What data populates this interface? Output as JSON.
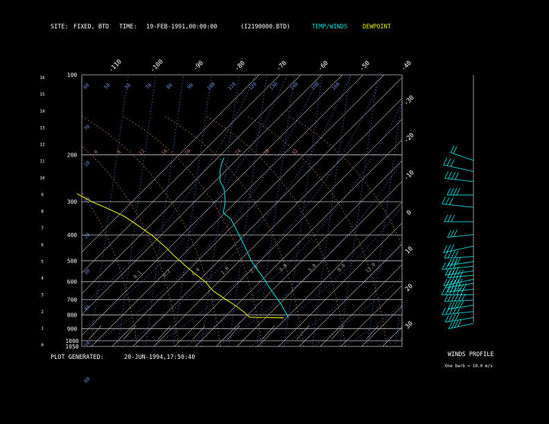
{
  "header": {
    "site_label": "SITE:",
    "site_value": "FIXED, BTD",
    "time_label": "TIME:",
    "time_value": "19-FEB-1991,00:00:00",
    "file_value": "(I2190000.BTD)",
    "temp_winds_label": "TEMP/WINDS",
    "dewpoint_label": "DEWPOINT"
  },
  "footer": {
    "generated_label": "PLOT GENERATED:",
    "generated_value": "20-JUN-1994,17:50:40"
  },
  "winds_panel": {
    "title": "WINDS PROFILE",
    "caption": "One barb = 10.0 m/s"
  },
  "colors": {
    "background": "#000000",
    "frame": "#c8c8c8",
    "isotherm": "#c8c8c8",
    "mixing_ratio": "#4f6fd8",
    "dry_adiabat": "#c07050",
    "moist_adiabat": "#4f6fd8",
    "temperature": "#00e0e0",
    "dewpoint": "#f0f000",
    "label_blue": "#6f8fe8",
    "label_orange": "#d08060",
    "wind": "#00e0e0"
  },
  "chart_data": {
    "type": "line",
    "chart_kind": "skew-T log-P",
    "pressure_axis_ticks": [
      "100",
      "200",
      "300",
      "400",
      "500",
      "600",
      "700",
      "800",
      "900",
      "1000",
      "1050"
    ],
    "pressure_levels": [
      100,
      200,
      300,
      400,
      500,
      600,
      700,
      800,
      900,
      1000,
      1050
    ],
    "height_axis_ticks": [
      "0",
      "1",
      "2",
      "3",
      "4",
      "5",
      "6",
      "7",
      "8",
      "9",
      "10",
      "11",
      "12",
      "13",
      "14",
      "15",
      "16"
    ],
    "height_km": [
      0,
      1,
      2,
      3,
      4,
      5,
      6,
      7,
      8,
      9,
      10,
      11,
      12,
      13,
      14,
      15,
      16
    ],
    "isotherm_top_labels": [
      "-110",
      "-100",
      "-90",
      "-80",
      "-70",
      "-60",
      "-50",
      "-40"
    ],
    "isotherm_right_labels": [
      "-30",
      "-20",
      "-10",
      "0",
      "10",
      "20",
      "30"
    ],
    "mixing_ratio_top_labels": [
      "60",
      "50",
      "50",
      "70",
      "80",
      "90",
      "100",
      "110",
      "120",
      "130",
      "140",
      "150",
      "160"
    ],
    "mixing_ratio_left_labels": [
      "70",
      "10",
      "10",
      "20",
      "30",
      "40",
      "50",
      "60"
    ],
    "dry_adiabat_labels": [
      "0",
      "8",
      "12",
      "16",
      "20",
      "24",
      "28",
      "32"
    ],
    "moist_adiabat_labels": [
      "0.1",
      "0.2",
      "0.4",
      "1.0",
      "2.0",
      "3.0",
      "5.0",
      "8.0",
      "12.0"
    ],
    "series": [
      {
        "name": "TEMP/WINDS",
        "points": [
          {
            "p": 820,
            "t": -1
          },
          {
            "p": 800,
            "t": -2
          },
          {
            "p": 760,
            "t": -5
          },
          {
            "p": 720,
            "t": -8
          },
          {
            "p": 670,
            "t": -13
          },
          {
            "p": 620,
            "t": -18
          },
          {
            "p": 580,
            "t": -22
          },
          {
            "p": 540,
            "t": -27
          },
          {
            "p": 500,
            "t": -32
          },
          {
            "p": 450,
            "t": -37
          },
          {
            "p": 400,
            "t": -43
          },
          {
            "p": 350,
            "t": -50
          },
          {
            "p": 330,
            "t": -56
          },
          {
            "p": 300,
            "t": -56
          },
          {
            "p": 270,
            "t": -58
          },
          {
            "p": 250,
            "t": -62
          },
          {
            "p": 230,
            "t": -63
          },
          {
            "p": 215,
            "t": -63
          },
          {
            "p": 205,
            "t": -62
          }
        ]
      },
      {
        "name": "DEWPOINT",
        "points": [
          {
            "p": 820,
            "t": -3
          },
          {
            "p": 815,
            "t": -20
          },
          {
            "p": 780,
            "t": -22
          },
          {
            "p": 730,
            "t": -26
          },
          {
            "p": 690,
            "t": -30
          },
          {
            "p": 650,
            "t": -34
          },
          {
            "p": 600,
            "t": -37
          },
          {
            "p": 560,
            "t": -41
          },
          {
            "p": 520,
            "t": -45
          },
          {
            "p": 480,
            "t": -49
          },
          {
            "p": 440,
            "t": -53
          },
          {
            "p": 400,
            "t": -58
          },
          {
            "p": 360,
            "t": -65
          },
          {
            "p": 340,
            "t": -69
          },
          {
            "p": 320,
            "t": -75
          },
          {
            "p": 300,
            "t": -82
          },
          {
            "p": 280,
            "t": -88
          }
        ]
      }
    ],
    "winds": [
      {
        "p": 820,
        "speed_ms": 40,
        "dir_deg": 250
      },
      {
        "p": 780,
        "speed_ms": 40,
        "dir_deg": 255
      },
      {
        "p": 740,
        "speed_ms": 50,
        "dir_deg": 260
      },
      {
        "p": 700,
        "speed_ms": 50,
        "dir_deg": 255
      },
      {
        "p": 670,
        "speed_ms": 60,
        "dir_deg": 265
      },
      {
        "p": 640,
        "speed_ms": 60,
        "dir_deg": 270
      },
      {
        "p": 610,
        "speed_ms": 60,
        "dir_deg": 260
      },
      {
        "p": 580,
        "speed_ms": 50,
        "dir_deg": 255
      },
      {
        "p": 560,
        "speed_ms": 50,
        "dir_deg": 250
      },
      {
        "p": 540,
        "speed_ms": 50,
        "dir_deg": 260
      },
      {
        "p": 520,
        "speed_ms": 40,
        "dir_deg": 255
      },
      {
        "p": 500,
        "speed_ms": 40,
        "dir_deg": 260
      },
      {
        "p": 480,
        "speed_ms": 40,
        "dir_deg": 255
      },
      {
        "p": 460,
        "speed_ms": 40,
        "dir_deg": 265
      },
      {
        "p": 420,
        "speed_ms": 30,
        "dir_deg": 250
      },
      {
        "p": 380,
        "speed_ms": 30,
        "dir_deg": 260
      },
      {
        "p": 340,
        "speed_ms": 30,
        "dir_deg": 270
      },
      {
        "p": 300,
        "speed_ms": 30,
        "dir_deg": 280
      },
      {
        "p": 270,
        "speed_ms": 40,
        "dir_deg": 270
      },
      {
        "p": 240,
        "speed_ms": 40,
        "dir_deg": 280
      },
      {
        "p": 220,
        "speed_ms": 30,
        "dir_deg": 290
      },
      {
        "p": 200,
        "speed_ms": 20,
        "dir_deg": 300
      }
    ]
  }
}
